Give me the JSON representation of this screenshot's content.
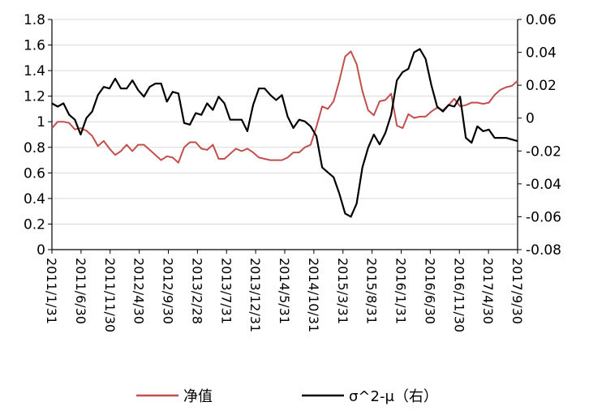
{
  "chart_data": {
    "type": "line",
    "x_tick_labels": [
      "2011/1/31",
      "2011/6/30",
      "2011/11/30",
      "2012/4/30",
      "2012/9/30",
      "2013/2/28",
      "2013/7/31",
      "2013/12/31",
      "2014/5/31",
      "2014/10/31",
      "2015/3/31",
      "2015/8/31",
      "2016/1/31",
      "2016/6/30",
      "2016/11/30",
      "2017/4/30",
      "2017/9/30"
    ],
    "y_left": {
      "ticks": [
        "0",
        "0.2",
        "0.4",
        "0.6",
        "0.8",
        "1",
        "1.2",
        "1.4",
        "1.6",
        "1.8"
      ],
      "lim": [
        0,
        1.8
      ]
    },
    "y_right": {
      "ticks": [
        "-0.08",
        "-0.06",
        "-0.04",
        "-0.02",
        "0",
        "0.02",
        "0.04",
        "0.06"
      ],
      "lim": [
        -0.08,
        0.06
      ]
    },
    "grid": "horizontal",
    "legend_position": "bottom",
    "series": [
      {
        "name": "净值",
        "axis": "left",
        "color": "#c0504d",
        "values": [
          0.95,
          1.0,
          1.0,
          0.99,
          0.94,
          0.95,
          0.93,
          0.89,
          0.81,
          0.85,
          0.79,
          0.74,
          0.77,
          0.82,
          0.77,
          0.82,
          0.82,
          0.78,
          0.74,
          0.7,
          0.73,
          0.72,
          0.68,
          0.8,
          0.84,
          0.84,
          0.79,
          0.78,
          0.82,
          0.71,
          0.71,
          0.75,
          0.79,
          0.77,
          0.79,
          0.76,
          0.72,
          0.71,
          0.7,
          0.7,
          0.7,
          0.72,
          0.76,
          0.76,
          0.8,
          0.82,
          0.96,
          1.12,
          1.1,
          1.16,
          1.32,
          1.51,
          1.55,
          1.45,
          1.24,
          1.09,
          1.05,
          1.16,
          1.17,
          1.22,
          0.97,
          0.95,
          1.06,
          1.03,
          1.04,
          1.04,
          1.08,
          1.11,
          1.09,
          1.13,
          1.18,
          1.12,
          1.13,
          1.15,
          1.15,
          1.14,
          1.15,
          1.21,
          1.25,
          1.27,
          1.28,
          1.32
        ]
      },
      {
        "name": "σ^2-μ（右）",
        "axis": "right",
        "color": "#000000",
        "values": [
          0.009,
          0.007,
          0.009,
          0.002,
          -0.001,
          -0.01,
          0.0,
          0.004,
          0.014,
          0.019,
          0.018,
          0.024,
          0.018,
          0.018,
          0.023,
          0.017,
          0.013,
          0.019,
          0.021,
          0.021,
          0.01,
          0.016,
          0.015,
          -0.003,
          -0.004,
          0.003,
          0.002,
          0.009,
          0.005,
          0.013,
          0.009,
          -0.001,
          -0.001,
          -0.001,
          -0.008,
          0.008,
          0.018,
          0.018,
          0.014,
          0.011,
          0.014,
          0.001,
          -0.006,
          -0.001,
          -0.002,
          -0.005,
          -0.011,
          -0.03,
          -0.033,
          -0.036,
          -0.046,
          -0.058,
          -0.06,
          -0.052,
          -0.03,
          -0.018,
          -0.01,
          -0.016,
          -0.009,
          0.002,
          0.023,
          0.028,
          0.03,
          0.04,
          0.042,
          0.036,
          0.02,
          0.007,
          0.004,
          0.008,
          0.007,
          0.013,
          -0.012,
          -0.015,
          -0.005,
          -0.008,
          -0.007,
          -0.012,
          -0.012,
          -0.012,
          -0.013,
          -0.014
        ]
      }
    ]
  }
}
